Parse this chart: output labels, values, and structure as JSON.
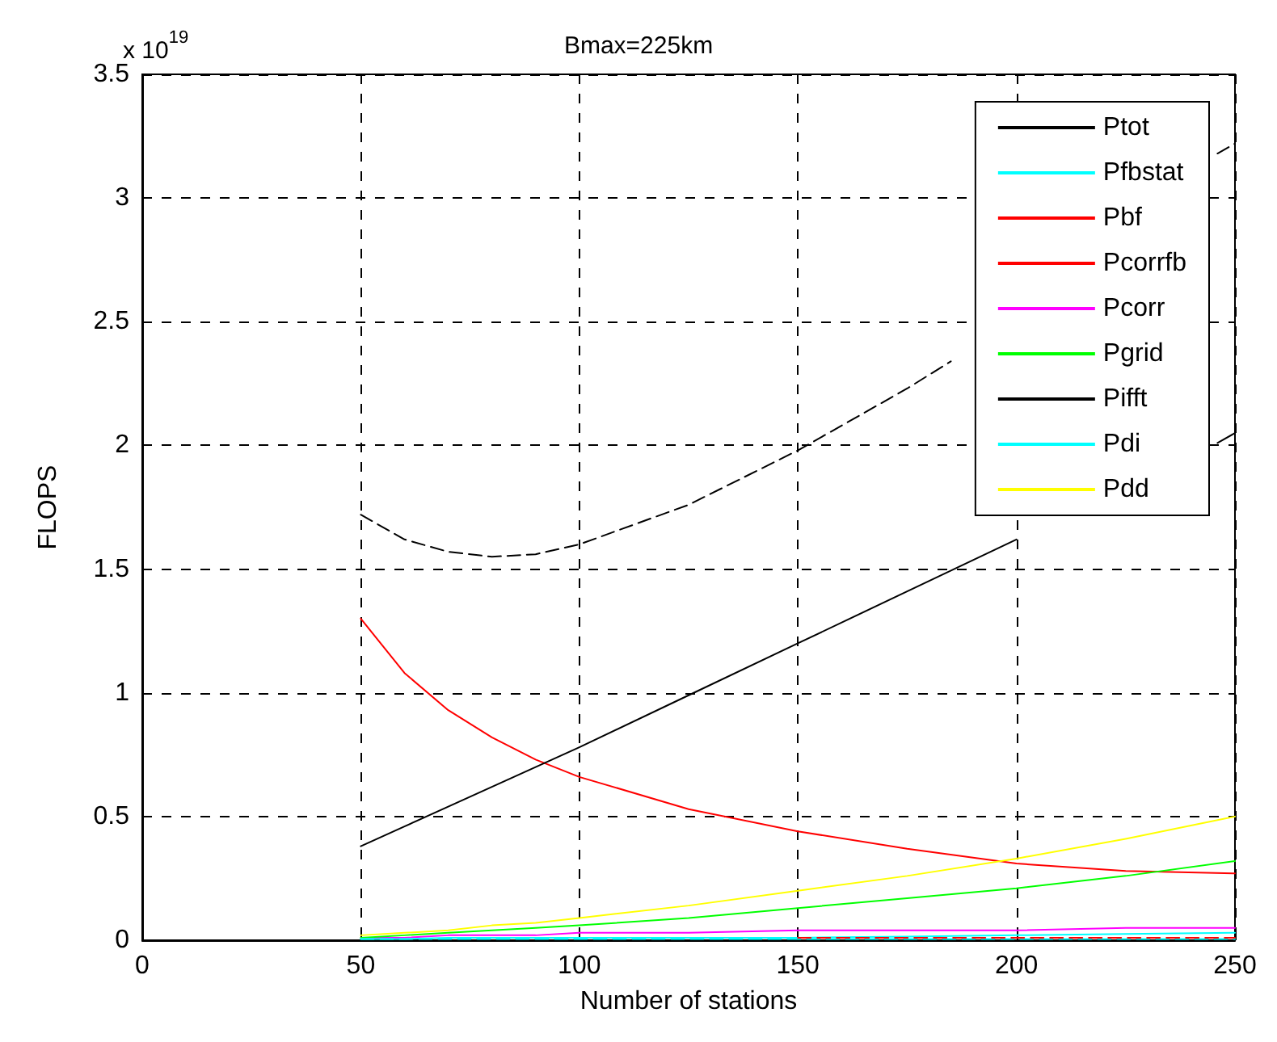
{
  "chart_data": {
    "type": "line",
    "title": "Bmax=225km",
    "xlabel": "Number of stations",
    "ylabel": "FLOPS",
    "annotations": [
      "x 10$^{19}$"
    ],
    "x": [
      50,
      60,
      70,
      80,
      90,
      100,
      125,
      150,
      175,
      200,
      225,
      250
    ],
    "series": [
      {
        "name": "Ptot",
        "color": "#000000",
        "line_style": "dashed",
        "x": [
          50,
          60,
          70,
          80,
          90,
          100,
          125,
          150,
          175,
          185,
          200,
          225,
          246,
          250
        ],
        "values": [
          1.72,
          1.62,
          1.57,
          1.55,
          1.56,
          1.6,
          1.76,
          1.98,
          2.23,
          2.34,
          null,
          null,
          3.18,
          3.22
        ]
      },
      {
        "name": "Pfbstat",
        "color": "#00ffff",
        "line_style": "dashed",
        "values": [
          0.005,
          0.005,
          0.005,
          0.005,
          0.005,
          0.005,
          0.005,
          0.005,
          0.005,
          0.005,
          0.005,
          0.005
        ]
      },
      {
        "name": "Pbf",
        "color": "#ff0000",
        "values": [
          1.3,
          1.08,
          0.93,
          0.82,
          0.73,
          0.66,
          0.53,
          0.44,
          0.37,
          0.31,
          0.28,
          0.27
        ]
      },
      {
        "name": "Pcorrfb",
        "color": "#ff0000",
        "line_style": "dashed",
        "values": [
          null,
          null,
          null,
          null,
          null,
          null,
          null,
          0.01,
          0.01,
          0.01,
          0.01,
          0.01
        ]
      },
      {
        "name": "Pcorr",
        "color": "#ff00ff",
        "values": [
          0.01,
          0.01,
          0.02,
          0.02,
          0.02,
          0.03,
          0.03,
          0.04,
          0.04,
          0.04,
          0.05,
          0.05
        ]
      },
      {
        "name": "Pgrid",
        "color": "#00ff00",
        "values": [
          0.01,
          0.02,
          0.03,
          0.04,
          0.05,
          0.06,
          0.09,
          0.13,
          0.17,
          0.21,
          0.26,
          0.32
        ]
      },
      {
        "name": "Pifft",
        "color": "#000000",
        "x": [
          50,
          60,
          70,
          80,
          90,
          100,
          125,
          150,
          175,
          200,
          225,
          246,
          250
        ],
        "values": [
          0.38,
          0.46,
          0.54,
          0.62,
          0.7,
          0.78,
          0.99,
          1.2,
          1.41,
          1.62,
          null,
          2.01,
          2.05
        ]
      },
      {
        "name": "Pdi",
        "color": "#00ffff",
        "values": [
          0.005,
          0.005,
          0.01,
          0.01,
          0.01,
          0.01,
          0.01,
          0.01,
          0.015,
          0.02,
          0.025,
          0.03
        ]
      },
      {
        "name": "Pdd",
        "color": "#ffff00",
        "values": [
          0.02,
          0.03,
          0.04,
          0.06,
          0.07,
          0.09,
          0.14,
          0.2,
          0.26,
          0.33,
          0.41,
          0.5
        ]
      }
    ],
    "xlim": [
      0,
      250
    ],
    "xticks": [
      0,
      50,
      100,
      150,
      200,
      250
    ],
    "ylim": [
      0,
      3.5
    ],
    "yticks": [
      0,
      0.5,
      1,
      1.5,
      2,
      2.5,
      3,
      3.5
    ],
    "grid": true,
    "legend": "top right"
  }
}
